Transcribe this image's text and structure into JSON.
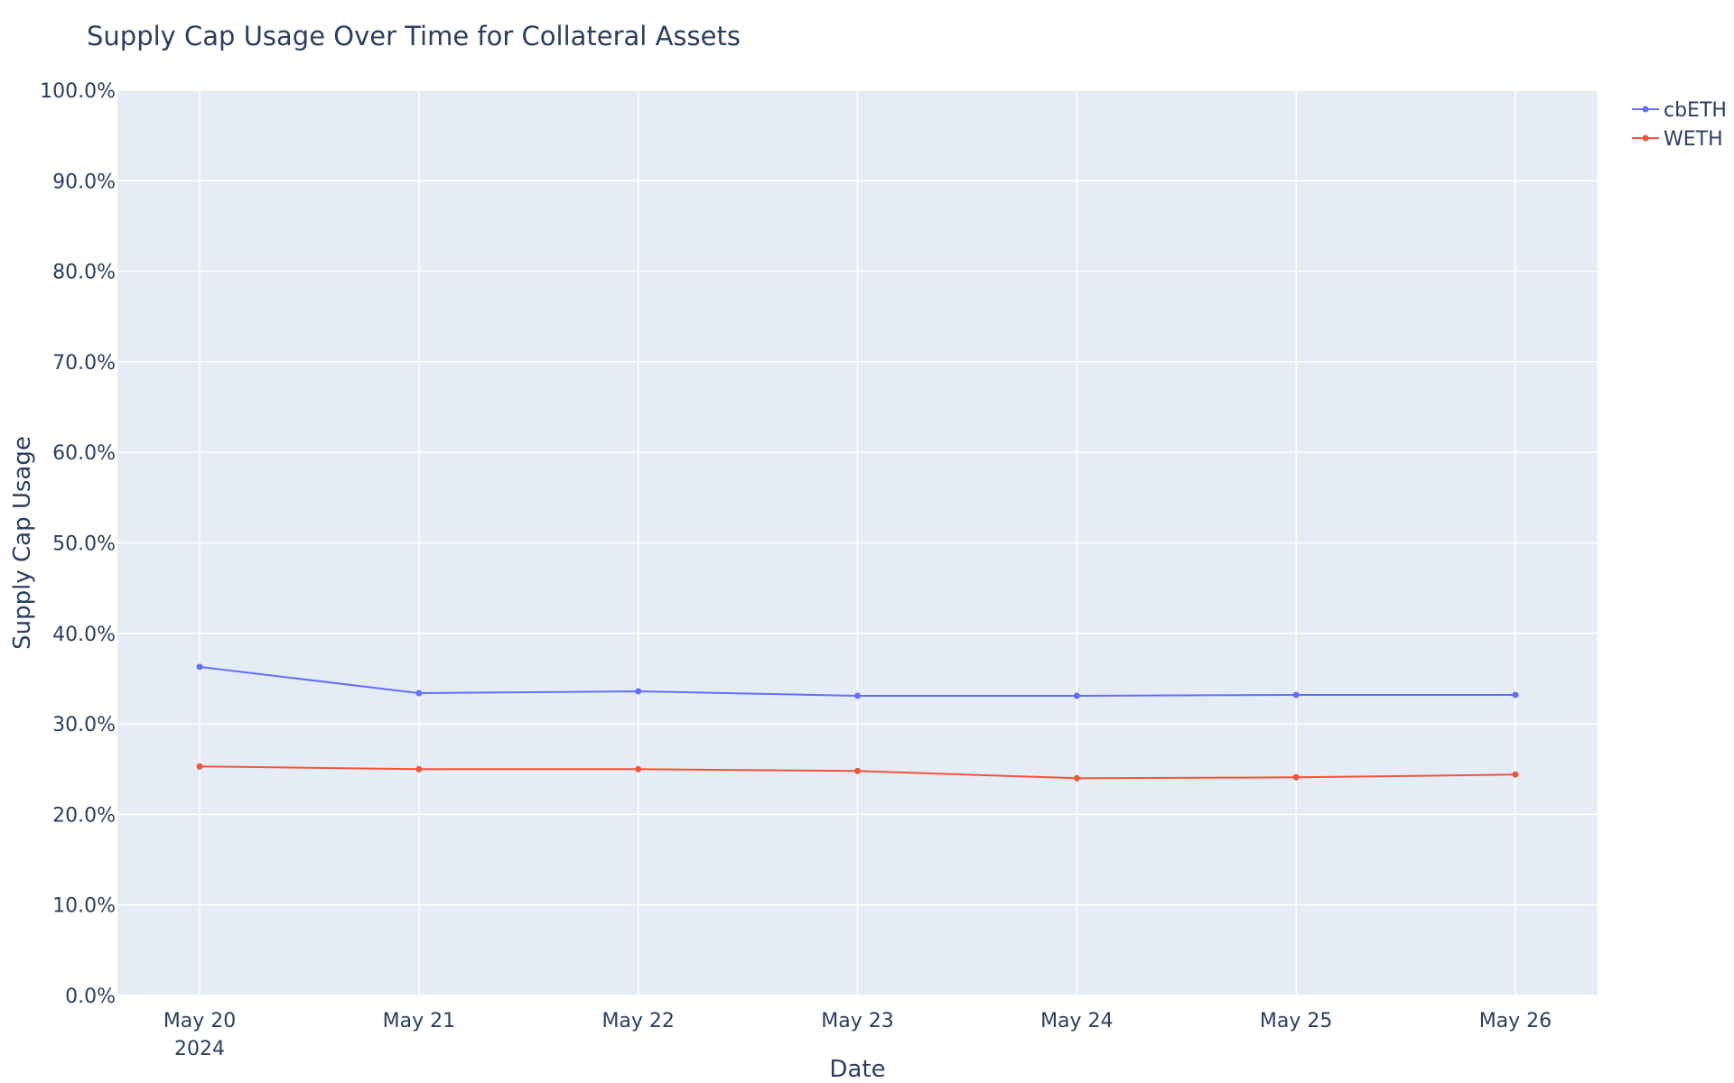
{
  "chart_data": {
    "type": "line",
    "title": "Supply Cap Usage Over Time for Collateral Assets",
    "xlabel": "Date",
    "ylabel": "Supply Cap Usage",
    "x": [
      "2024-05-20",
      "2024-05-21",
      "2024-05-22",
      "2024-05-23",
      "2024-05-24",
      "2024-05-25",
      "2024-05-26"
    ],
    "x_tick_labels": [
      "May 20",
      "May 21",
      "May 22",
      "May 23",
      "May 24",
      "May 25",
      "May 26"
    ],
    "x_tick_sublabel": "2024",
    "xlim": [
      "2024-05-19T15:00",
      "2024-05-26T09:00"
    ],
    "ylim": [
      0,
      1
    ],
    "y_ticks": [
      0,
      0.1,
      0.2,
      0.3,
      0.4,
      0.5,
      0.6,
      0.7,
      0.8,
      0.9,
      1.0
    ],
    "y_tick_labels": [
      "0.0%",
      "10.0%",
      "20.0%",
      "30.0%",
      "40.0%",
      "50.0%",
      "60.0%",
      "70.0%",
      "80.0%",
      "90.0%",
      "100.0%"
    ],
    "grid": true,
    "legend_position": "top-right",
    "series": [
      {
        "name": "cbETH",
        "color": "#636efa",
        "values": [
          0.363,
          0.334,
          0.336,
          0.331,
          0.331,
          0.332,
          0.332
        ]
      },
      {
        "name": "WETH",
        "color": "#ef553b",
        "values": [
          0.253,
          0.25,
          0.25,
          0.248,
          0.24,
          0.241,
          0.244
        ]
      }
    ]
  }
}
